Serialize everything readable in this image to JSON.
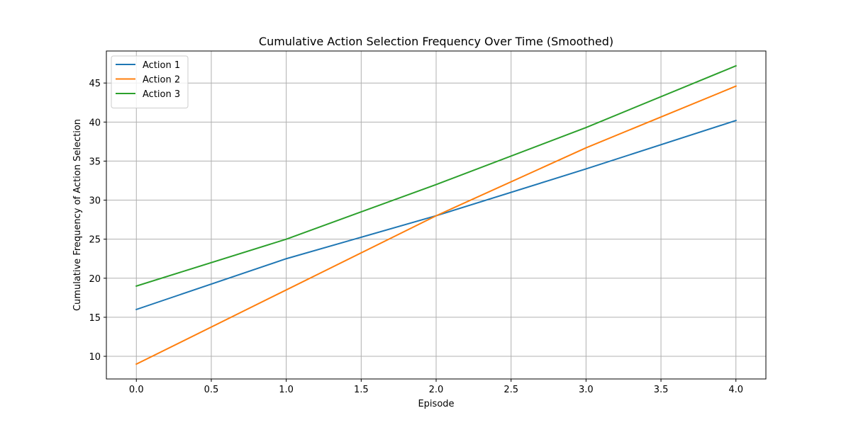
{
  "chart_data": {
    "type": "line",
    "title": "Cumulative Action Selection Frequency Over Time (Smoothed)",
    "xlabel": "Episode",
    "ylabel": "Cumulative Frequency of Action Selection",
    "xlim": [
      -0.2,
      4.2
    ],
    "ylim": [
      7.1,
      49.1
    ],
    "xticks": [
      0.0,
      0.5,
      1.0,
      1.5,
      2.0,
      2.5,
      3.0,
      3.5,
      4.0
    ],
    "xtick_labels": [
      "0.0",
      "0.5",
      "1.0",
      "1.5",
      "2.0",
      "2.5",
      "3.0",
      "3.5",
      "4.0"
    ],
    "yticks": [
      10,
      15,
      20,
      25,
      30,
      35,
      40,
      45
    ],
    "ytick_labels": [
      "10",
      "15",
      "20",
      "25",
      "30",
      "35",
      "40",
      "45"
    ],
    "grid": true,
    "legend_position": "top-left",
    "x": [
      0,
      1,
      2,
      3,
      4
    ],
    "series": [
      {
        "name": "Action 1",
        "color": "#1f77b4",
        "values": [
          16.0,
          22.5,
          28.0,
          34.0,
          40.2
        ]
      },
      {
        "name": "Action 2",
        "color": "#ff7f0e",
        "values": [
          9.0,
          18.5,
          28.0,
          36.7,
          44.6
        ]
      },
      {
        "name": "Action 3",
        "color": "#2ca02c",
        "values": [
          19.0,
          25.0,
          32.0,
          39.3,
          47.2
        ]
      }
    ]
  }
}
